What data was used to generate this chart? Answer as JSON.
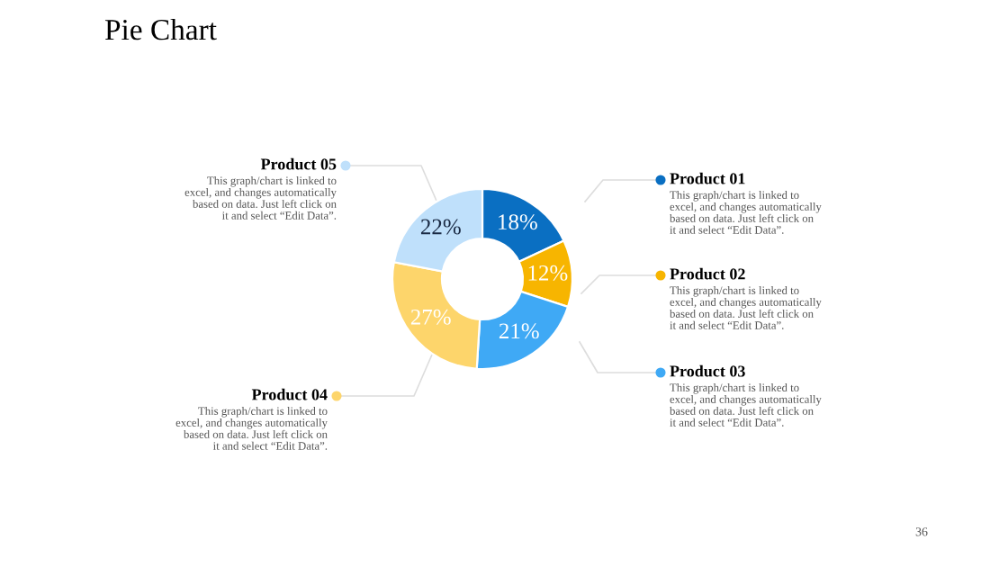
{
  "chart_data": {
    "type": "donut",
    "title": "Pie Chart",
    "categories": [
      "Product 01",
      "Product 02",
      "Product 03",
      "Product 04",
      "Product 05"
    ],
    "values": [
      18,
      12,
      21,
      27,
      22
    ],
    "colors": [
      "#0a6fc2",
      "#f7b500",
      "#3fa9f5",
      "#fdd56b",
      "#bfe0fb"
    ],
    "legend": "right",
    "value_labels": [
      "18%",
      "12%",
      "21%",
      "27%",
      "22%"
    ],
    "annotations": [
      "This graph/chart is linked to\nexcel, and changes automatically\nbased on data. Just left click on\nit and select “Edit Data”.",
      "This graph/chart is linked to\nexcel, and changes automatically\nbased on data. Just left click on\nit and select “Edit Data”.",
      "This graph/chart is linked to\nexcel, and changes automatically\nbased on data. Just left click on\nit and select “Edit Data”.",
      "This graph/chart is linked to\nexcel, and changes automatically\nbased on data. Just left click on\nit and select “Edit Data”.",
      "This graph/chart is linked to\nexcel, and changes automatically\nbased on data. Just left click on\nit and select “Edit Data”.",
      "36"
    ]
  }
}
